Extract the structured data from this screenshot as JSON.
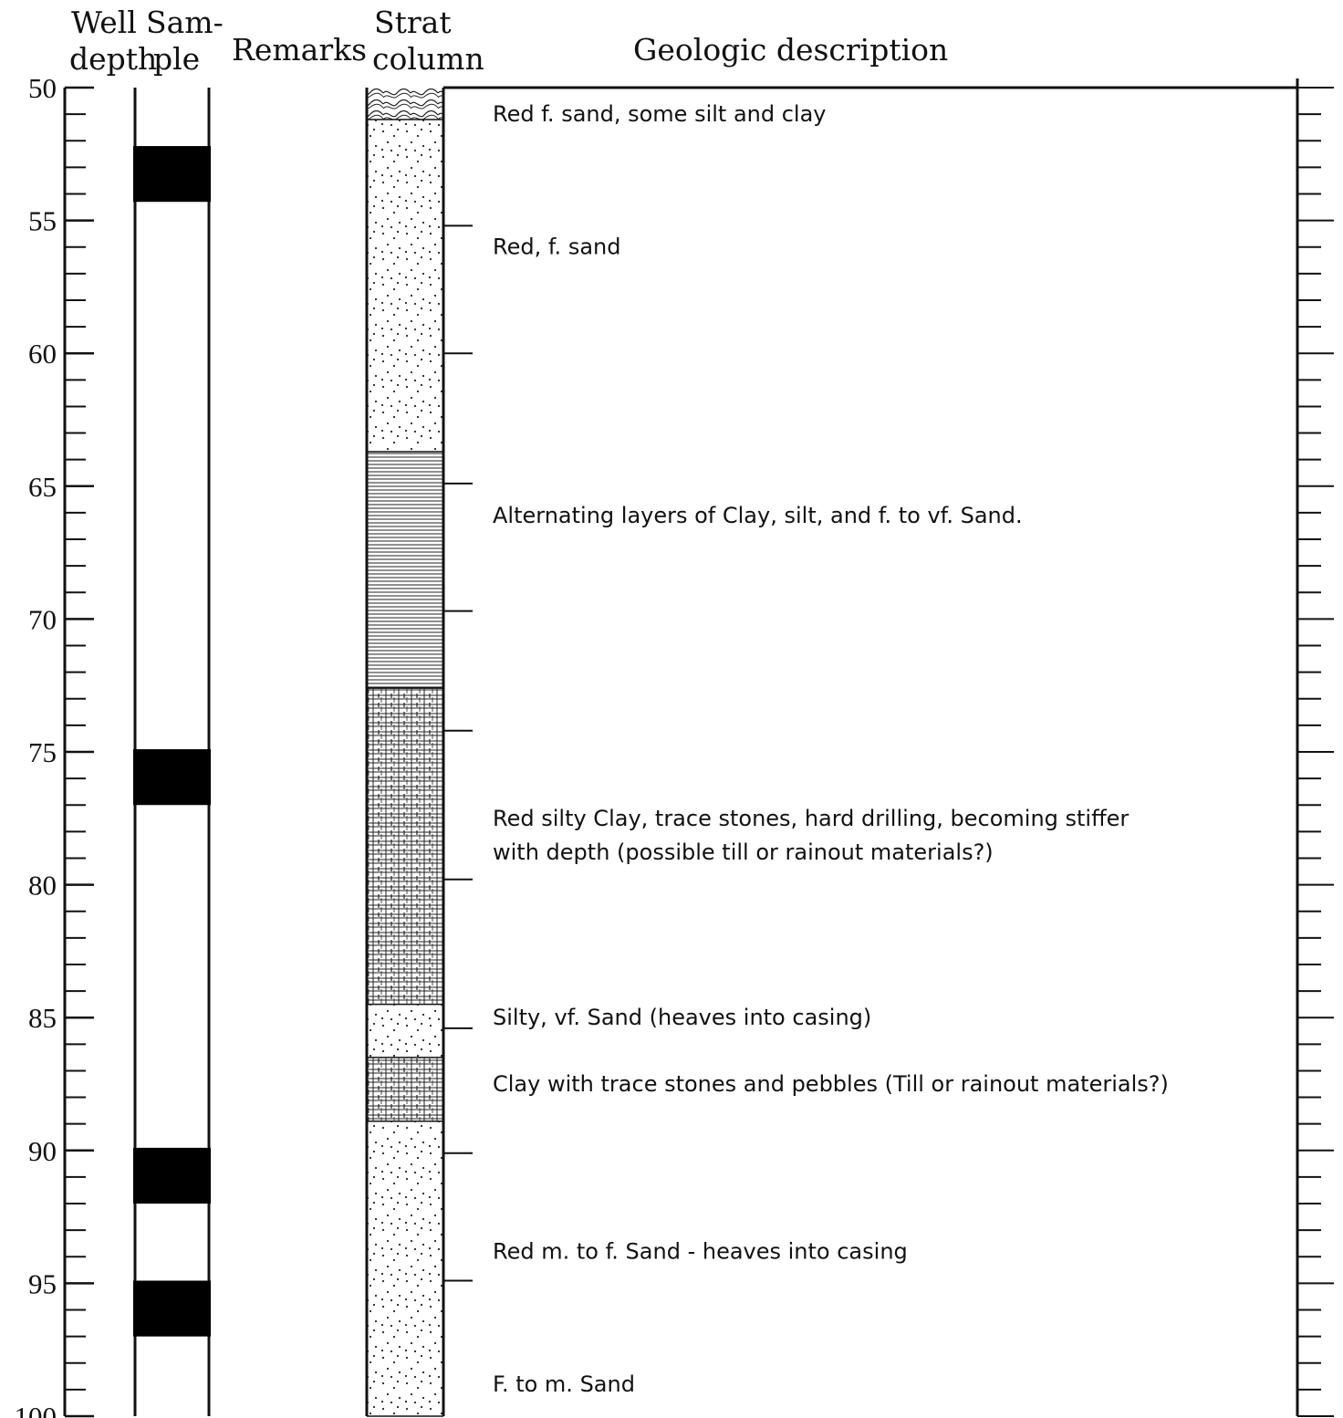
{
  "headers": {
    "well_depth": [
      "Well",
      "depth"
    ],
    "sample": [
      "Sam-",
      "ple"
    ],
    "remarks": "Remarks",
    "strat_column": [
      "Strat",
      "column"
    ],
    "geologic_description": "Geologic description"
  },
  "depth_axis": {
    "min": 50,
    "max": 100,
    "major_step": 5,
    "minor_step": 1,
    "labels": [
      "50",
      "55",
      "60",
      "65",
      "70",
      "75",
      "80",
      "85",
      "90",
      "95",
      "100"
    ]
  },
  "samples": [
    {
      "top": 52.2,
      "bottom": 54.3
    },
    {
      "top": 74.9,
      "bottom": 77.0
    },
    {
      "top": 89.9,
      "bottom": 92.0
    },
    {
      "top": 94.9,
      "bottom": 97.0
    }
  ],
  "strata": [
    {
      "top": 50.0,
      "bottom": 51.2,
      "pattern": "contorted"
    },
    {
      "top": 51.2,
      "bottom": 63.7,
      "pattern": "sand"
    },
    {
      "top": 63.7,
      "bottom": 72.6,
      "pattern": "laminated"
    },
    {
      "top": 72.6,
      "bottom": 84.5,
      "pattern": "silty-clay"
    },
    {
      "top": 84.5,
      "bottom": 86.5,
      "pattern": "sand"
    },
    {
      "top": 86.5,
      "bottom": 88.9,
      "pattern": "silty-clay"
    },
    {
      "top": 88.9,
      "bottom": 100.0,
      "pattern": "sand"
    }
  ],
  "contacts": [
    55.2,
    60.0,
    64.9,
    69.7,
    74.2,
    79.8,
    85.4,
    90.1,
    94.9
  ],
  "descriptions": [
    {
      "depth": 51.0,
      "lines": [
        "Red f. sand, some silt and clay"
      ]
    },
    {
      "depth": 56.0,
      "lines": [
        "Red, f. sand"
      ]
    },
    {
      "depth": 66.1,
      "lines": [
        "Alternating layers of Clay, silt, and f. to vf. Sand."
      ]
    },
    {
      "depth": 77.5,
      "lines": [
        "Red silty Clay, trace stones, hard drilling, becoming stiffer",
        "with depth (possible till or rainout materials?)"
      ]
    },
    {
      "depth": 85.0,
      "lines": [
        "Silty, vf. Sand (heaves into casing)"
      ]
    },
    {
      "depth": 87.5,
      "lines": [
        "Clay with trace stones and pebbles (Till or rainout materials?)"
      ]
    },
    {
      "depth": 93.8,
      "lines": [
        "Red m. to f. Sand - heaves into casing"
      ]
    },
    {
      "depth": 98.8,
      "lines": [
        "F. to m. Sand"
      ]
    }
  ]
}
